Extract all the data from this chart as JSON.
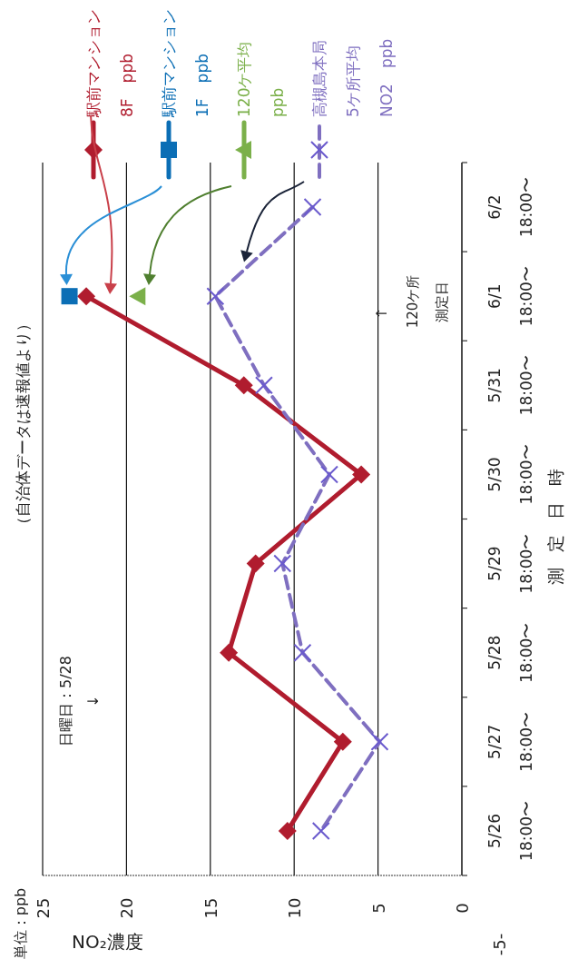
{
  "chart_data": {
    "type": "line",
    "orientation": "horizontal",
    "xlabel": "NO₂濃度",
    "ylabel": "測定日時",
    "categories": [
      "6/2\n18:00〜",
      "6/1\n18:00〜",
      "5/31\n18:00〜",
      "5/30\n18:00〜",
      "5/29\n18:00〜",
      "5/28\n18:00〜",
      "5/27\n18:00〜",
      "5/26\n18:00〜"
    ],
    "series": [
      {
        "name": "駅前マンション\n8F　ppb",
        "color": "#b01c2e",
        "marker": "diamond",
        "line_style": "solid",
        "values": [
          null,
          22.4,
          13.0,
          6.0,
          12.3,
          13.9,
          7.1,
          10.4
        ]
      },
      {
        "name": "駅前マンション\n1F　ppb",
        "color": "#0b6eb5",
        "marker": "square",
        "line_style": "solid",
        "values": [
          null,
          23.4,
          null,
          null,
          null,
          null,
          null,
          null
        ]
      },
      {
        "name": "120ケ平均\nppb",
        "color": "#7bb04a",
        "marker": "triangle",
        "line_style": "solid",
        "values": [
          null,
          19.3,
          null,
          null,
          null,
          null,
          null,
          null
        ]
      },
      {
        "name": "高槻島本局\n5ケ所平均\nNO2　ppb",
        "color": "#7f6fc0",
        "marker": "cross",
        "line_style": "dashed",
        "values": [
          8.9,
          14.7,
          11.8,
          7.9,
          10.7,
          9.5,
          4.9,
          8.4
        ]
      }
    ],
    "xlim": [
      25,
      0
    ],
    "xticks": [
      25,
      20,
      15,
      10,
      5,
      0
    ],
    "grid": "x",
    "legend": "top",
    "annotations": [
      "単位：ppb",
      "（自治体データは速報値より）",
      "日曜日：5/28\n↓",
      "↑",
      "120ケ所",
      "測定日",
      "-5-"
    ]
  }
}
